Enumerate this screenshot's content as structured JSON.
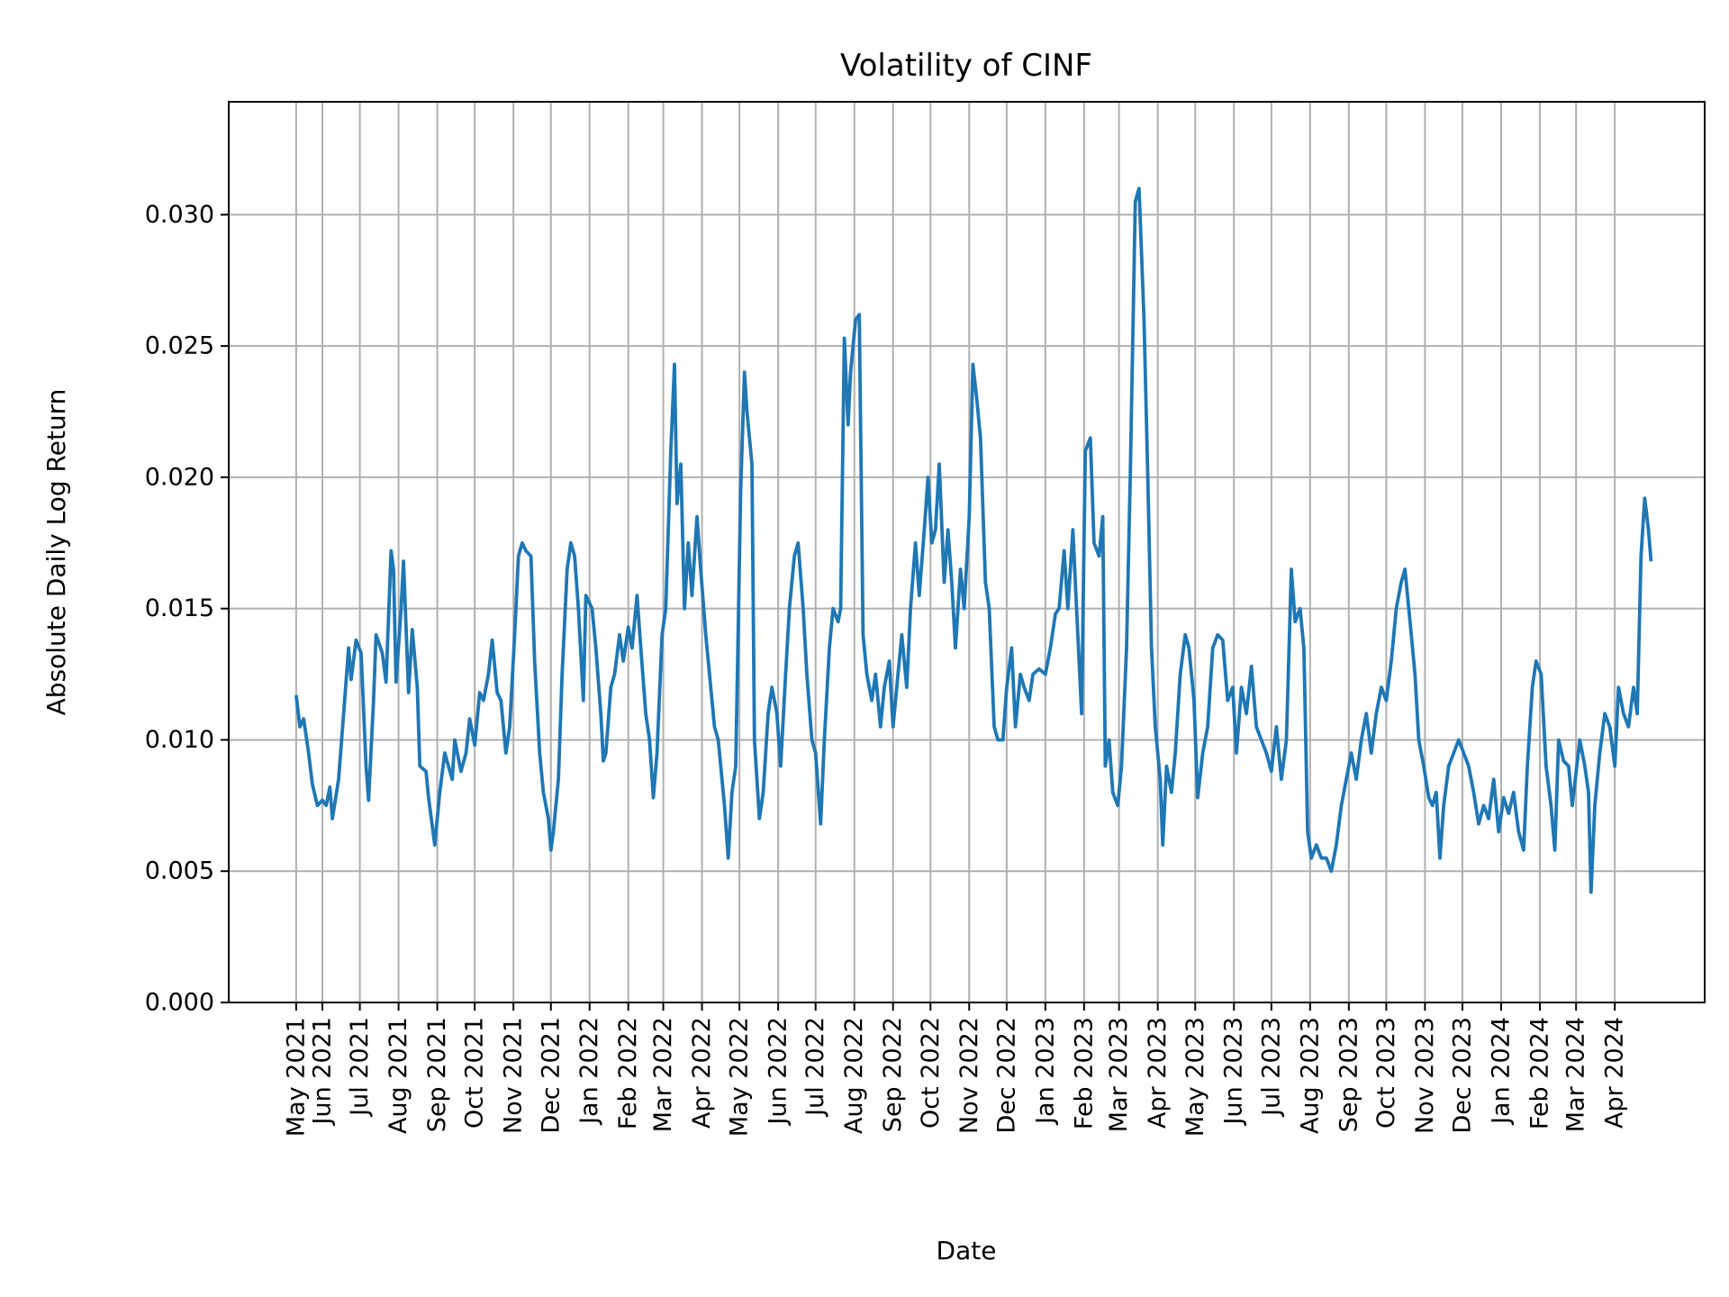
{
  "chart_data": {
    "type": "line",
    "title": "Volatility of CINF",
    "xlabel": "Date",
    "ylabel": "Absolute Daily Log Return",
    "xlim": [
      "2021-03-18",
      "2024-06-12"
    ],
    "ylim": [
      0,
      0.0343
    ],
    "grid": true,
    "line_color": "#1f77b4",
    "yticks": [
      "0.000",
      "0.005",
      "0.010",
      "0.015",
      "0.020",
      "0.025",
      "0.030"
    ],
    "xticks": [
      {
        "date": "2021-05-11",
        "label": "May 2021"
      },
      {
        "date": "2021-06-01",
        "label": "Jun 2021"
      },
      {
        "date": "2021-07-01",
        "label": "Jul 2021"
      },
      {
        "date": "2021-08-01",
        "label": "Aug 2021"
      },
      {
        "date": "2021-09-01",
        "label": "Sep 2021"
      },
      {
        "date": "2021-10-01",
        "label": "Oct 2021"
      },
      {
        "date": "2021-11-01",
        "label": "Nov 2021"
      },
      {
        "date": "2021-12-01",
        "label": "Dec 2021"
      },
      {
        "date": "2022-01-01",
        "label": "Jan 2022"
      },
      {
        "date": "2022-02-01",
        "label": "Feb 2022"
      },
      {
        "date": "2022-03-01",
        "label": "Mar 2022"
      },
      {
        "date": "2022-04-01",
        "label": "Apr 2022"
      },
      {
        "date": "2022-05-01",
        "label": "May 2022"
      },
      {
        "date": "2022-06-01",
        "label": "Jun 2022"
      },
      {
        "date": "2022-07-01",
        "label": "Jul 2022"
      },
      {
        "date": "2022-08-01",
        "label": "Aug 2022"
      },
      {
        "date": "2022-09-01",
        "label": "Sep 2022"
      },
      {
        "date": "2022-10-01",
        "label": "Oct 2022"
      },
      {
        "date": "2022-11-01",
        "label": "Nov 2022"
      },
      {
        "date": "2022-12-01",
        "label": "Dec 2022"
      },
      {
        "date": "2023-01-01",
        "label": "Jan 2023"
      },
      {
        "date": "2023-02-01",
        "label": "Feb 2023"
      },
      {
        "date": "2023-03-01",
        "label": "Mar 2023"
      },
      {
        "date": "2023-04-01",
        "label": "Apr 2023"
      },
      {
        "date": "2023-05-01",
        "label": "May 2023"
      },
      {
        "date": "2023-06-01",
        "label": "Jun 2023"
      },
      {
        "date": "2023-07-01",
        "label": "Jul 2023"
      },
      {
        "date": "2023-08-01",
        "label": "Aug 2023"
      },
      {
        "date": "2023-09-01",
        "label": "Sep 2023"
      },
      {
        "date": "2023-10-01",
        "label": "Oct 2023"
      },
      {
        "date": "2023-11-01",
        "label": "Nov 2023"
      },
      {
        "date": "2023-12-01",
        "label": "Dec 2023"
      },
      {
        "date": "2024-01-01",
        "label": "Jan 2024"
      },
      {
        "date": "2024-02-01",
        "label": "Feb 2024"
      },
      {
        "date": "2024-03-01",
        "label": "Mar 2024"
      },
      {
        "date": "2024-04-01",
        "label": "Apr 2024"
      }
    ],
    "points": [
      [
        "2021-05-11",
        0.0117
      ],
      [
        "2021-05-14",
        0.0105
      ],
      [
        "2021-05-17",
        0.0108
      ],
      [
        "2021-05-21",
        0.0095
      ],
      [
        "2021-05-24",
        0.0083
      ],
      [
        "2021-05-28",
        0.0075
      ],
      [
        "2021-06-01",
        0.0077
      ],
      [
        "2021-06-04",
        0.0075
      ],
      [
        "2021-06-07",
        0.0082
      ],
      [
        "2021-06-09",
        0.007
      ],
      [
        "2021-06-14",
        0.0085
      ],
      [
        "2021-06-18",
        0.011
      ],
      [
        "2021-06-22",
        0.0135
      ],
      [
        "2021-06-24",
        0.0123
      ],
      [
        "2021-06-28",
        0.0138
      ],
      [
        "2021-07-02",
        0.0133
      ],
      [
        "2021-07-06",
        0.009
      ],
      [
        "2021-07-08",
        0.0077
      ],
      [
        "2021-07-12",
        0.0115
      ],
      [
        "2021-07-14",
        0.014
      ],
      [
        "2021-07-19",
        0.0133
      ],
      [
        "2021-07-22",
        0.0122
      ],
      [
        "2021-07-26",
        0.0172
      ],
      [
        "2021-07-28",
        0.0165
      ],
      [
        "2021-07-30",
        0.0122
      ],
      [
        "2021-08-03",
        0.015
      ],
      [
        "2021-08-05",
        0.0168
      ],
      [
        "2021-08-09",
        0.0118
      ],
      [
        "2021-08-12",
        0.0142
      ],
      [
        "2021-08-16",
        0.012
      ],
      [
        "2021-08-18",
        0.009
      ],
      [
        "2021-08-23",
        0.0088
      ],
      [
        "2021-08-25",
        0.0078
      ],
      [
        "2021-08-30",
        0.006
      ],
      [
        "2021-09-03",
        0.008
      ],
      [
        "2021-09-07",
        0.0095
      ],
      [
        "2021-09-10",
        0.009
      ],
      [
        "2021-09-13",
        0.0085
      ],
      [
        "2021-09-15",
        0.01
      ],
      [
        "2021-09-20",
        0.0088
      ],
      [
        "2021-09-24",
        0.0095
      ],
      [
        "2021-09-27",
        0.0108
      ],
      [
        "2021-10-01",
        0.0098
      ],
      [
        "2021-10-05",
        0.0118
      ],
      [
        "2021-10-08",
        0.0115
      ],
      [
        "2021-10-12",
        0.0125
      ],
      [
        "2021-10-15",
        0.0138
      ],
      [
        "2021-10-19",
        0.0118
      ],
      [
        "2021-10-22",
        0.0115
      ],
      [
        "2021-10-26",
        0.0095
      ],
      [
        "2021-10-29",
        0.0105
      ],
      [
        "2021-11-02",
        0.014
      ],
      [
        "2021-11-05",
        0.017
      ],
      [
        "2021-11-08",
        0.0175
      ],
      [
        "2021-11-11",
        0.0172
      ],
      [
        "2021-11-15",
        0.017
      ],
      [
        "2021-11-18",
        0.013
      ],
      [
        "2021-11-22",
        0.0095
      ],
      [
        "2021-11-25",
        0.008
      ],
      [
        "2021-11-29",
        0.007
      ],
      [
        "2021-12-01",
        0.0058
      ],
      [
        "2021-12-03",
        0.0065
      ],
      [
        "2021-12-07",
        0.0085
      ],
      [
        "2021-12-10",
        0.0125
      ],
      [
        "2021-12-14",
        0.0165
      ],
      [
        "2021-12-17",
        0.0175
      ],
      [
        "2021-12-20",
        0.017
      ],
      [
        "2021-12-23",
        0.015
      ],
      [
        "2021-12-27",
        0.0115
      ],
      [
        "2021-12-29",
        0.0155
      ],
      [
        "2022-01-03",
        0.015
      ],
      [
        "2022-01-06",
        0.0135
      ],
      [
        "2022-01-10",
        0.011
      ],
      [
        "2022-01-12",
        0.0092
      ],
      [
        "2022-01-14",
        0.0095
      ],
      [
        "2022-01-18",
        0.012
      ],
      [
        "2022-01-21",
        0.0125
      ],
      [
        "2022-01-25",
        0.014
      ],
      [
        "2022-01-28",
        0.013
      ],
      [
        "2022-02-01",
        0.0143
      ],
      [
        "2022-02-04",
        0.0135
      ],
      [
        "2022-02-08",
        0.0155
      ],
      [
        "2022-02-11",
        0.0135
      ],
      [
        "2022-02-15",
        0.011
      ],
      [
        "2022-02-18",
        0.01
      ],
      [
        "2022-02-21",
        0.0078
      ],
      [
        "2022-02-24",
        0.0095
      ],
      [
        "2022-02-28",
        0.014
      ],
      [
        "2022-03-03",
        0.015
      ],
      [
        "2022-03-07",
        0.021
      ],
      [
        "2022-03-10",
        0.0243
      ],
      [
        "2022-03-12",
        0.019
      ],
      [
        "2022-03-15",
        0.0205
      ],
      [
        "2022-03-18",
        0.015
      ],
      [
        "2022-03-21",
        0.0175
      ],
      [
        "2022-03-24",
        0.0155
      ],
      [
        "2022-03-28",
        0.0185
      ],
      [
        "2022-03-31",
        0.0165
      ],
      [
        "2022-04-04",
        0.014
      ],
      [
        "2022-04-07",
        0.0125
      ],
      [
        "2022-04-11",
        0.0105
      ],
      [
        "2022-04-14",
        0.01
      ],
      [
        "2022-04-19",
        0.0075
      ],
      [
        "2022-04-22",
        0.0055
      ],
      [
        "2022-04-25",
        0.008
      ],
      [
        "2022-04-28",
        0.009
      ],
      [
        "2022-05-02",
        0.0195
      ],
      [
        "2022-05-05",
        0.024
      ],
      [
        "2022-05-07",
        0.0225
      ],
      [
        "2022-05-11",
        0.0205
      ],
      [
        "2022-05-13",
        0.01
      ],
      [
        "2022-05-17",
        0.007
      ],
      [
        "2022-05-20",
        0.008
      ],
      [
        "2022-05-24",
        0.011
      ],
      [
        "2022-05-27",
        0.012
      ],
      [
        "2022-05-31",
        0.011
      ],
      [
        "2022-06-03",
        0.009
      ],
      [
        "2022-06-07",
        0.0125
      ],
      [
        "2022-06-10",
        0.015
      ],
      [
        "2022-06-14",
        0.017
      ],
      [
        "2022-06-17",
        0.0175
      ],
      [
        "2022-06-21",
        0.015
      ],
      [
        "2022-06-24",
        0.0125
      ],
      [
        "2022-06-28",
        0.01
      ],
      [
        "2022-07-01",
        0.0095
      ],
      [
        "2022-07-05",
        0.0068
      ],
      [
        "2022-07-08",
        0.01
      ],
      [
        "2022-07-12",
        0.0135
      ],
      [
        "2022-07-15",
        0.015
      ],
      [
        "2022-07-19",
        0.0145
      ],
      [
        "2022-07-21",
        0.015
      ],
      [
        "2022-07-24",
        0.0253
      ],
      [
        "2022-07-27",
        0.022
      ],
      [
        "2022-07-29",
        0.024
      ],
      [
        "2022-08-02",
        0.026
      ],
      [
        "2022-08-05",
        0.0262
      ],
      [
        "2022-08-08",
        0.014
      ],
      [
        "2022-08-11",
        0.0125
      ],
      [
        "2022-08-15",
        0.0115
      ],
      [
        "2022-08-18",
        0.0125
      ],
      [
        "2022-08-22",
        0.0105
      ],
      [
        "2022-08-25",
        0.012
      ],
      [
        "2022-08-29",
        0.013
      ],
      [
        "2022-09-01",
        0.0105
      ],
      [
        "2022-09-05",
        0.0125
      ],
      [
        "2022-09-08",
        0.014
      ],
      [
        "2022-09-12",
        0.012
      ],
      [
        "2022-09-15",
        0.015
      ],
      [
        "2022-09-19",
        0.0175
      ],
      [
        "2022-09-22",
        0.0155
      ],
      [
        "2022-09-26",
        0.018
      ],
      [
        "2022-09-29",
        0.02
      ],
      [
        "2022-10-02",
        0.0175
      ],
      [
        "2022-10-05",
        0.018
      ],
      [
        "2022-10-08",
        0.0205
      ],
      [
        "2022-10-12",
        0.016
      ],
      [
        "2022-10-15",
        0.018
      ],
      [
        "2022-10-18",
        0.016
      ],
      [
        "2022-10-21",
        0.0135
      ],
      [
        "2022-10-25",
        0.0165
      ],
      [
        "2022-10-28",
        0.015
      ],
      [
        "2022-11-01",
        0.0185
      ],
      [
        "2022-11-04",
        0.0243
      ],
      [
        "2022-11-07",
        0.023
      ],
      [
        "2022-11-10",
        0.0215
      ],
      [
        "2022-11-14",
        0.016
      ],
      [
        "2022-11-17",
        0.015
      ],
      [
        "2022-11-21",
        0.0105
      ],
      [
        "2022-11-24",
        0.01
      ],
      [
        "2022-11-28",
        0.01
      ],
      [
        "2022-12-01",
        0.012
      ],
      [
        "2022-12-05",
        0.0135
      ],
      [
        "2022-12-08",
        0.0105
      ],
      [
        "2022-12-12",
        0.0125
      ],
      [
        "2022-12-15",
        0.012
      ],
      [
        "2022-12-19",
        0.0115
      ],
      [
        "2022-12-22",
        0.0125
      ],
      [
        "2022-12-27",
        0.0127
      ],
      [
        "2023-01-01",
        0.0125
      ],
      [
        "2023-01-05",
        0.0135
      ],
      [
        "2023-01-09",
        0.0148
      ],
      [
        "2023-01-12",
        0.015
      ],
      [
        "2023-01-16",
        0.0172
      ],
      [
        "2023-01-19",
        0.015
      ],
      [
        "2023-01-23",
        0.018
      ],
      [
        "2023-01-26",
        0.015
      ],
      [
        "2023-01-30",
        0.011
      ],
      [
        "2023-02-02",
        0.021
      ],
      [
        "2023-02-06",
        0.0215
      ],
      [
        "2023-02-09",
        0.0175
      ],
      [
        "2023-02-13",
        0.017
      ],
      [
        "2023-02-16",
        0.0185
      ],
      [
        "2023-02-18",
        0.009
      ],
      [
        "2023-02-21",
        0.01
      ],
      [
        "2023-02-24",
        0.008
      ],
      [
        "2023-02-28",
        0.0075
      ],
      [
        "2023-03-03",
        0.009
      ],
      [
        "2023-03-07",
        0.0135
      ],
      [
        "2023-03-10",
        0.02
      ],
      [
        "2023-03-14",
        0.0305
      ],
      [
        "2023-03-17",
        0.031
      ],
      [
        "2023-03-21",
        0.026
      ],
      [
        "2023-03-24",
        0.02
      ],
      [
        "2023-03-27",
        0.0135
      ],
      [
        "2023-03-30",
        0.0105
      ],
      [
        "2023-04-03",
        0.0085
      ],
      [
        "2023-04-05",
        0.006
      ],
      [
        "2023-04-08",
        0.009
      ],
      [
        "2023-04-12",
        0.008
      ],
      [
        "2023-04-15",
        0.0095
      ],
      [
        "2023-04-19",
        0.0125
      ],
      [
        "2023-04-23",
        0.014
      ],
      [
        "2023-04-26",
        0.0135
      ],
      [
        "2023-04-30",
        0.0115
      ],
      [
        "2023-05-03",
        0.0078
      ],
      [
        "2023-05-07",
        0.0095
      ],
      [
        "2023-05-11",
        0.0105
      ],
      [
        "2023-05-15",
        0.0135
      ],
      [
        "2023-05-19",
        0.014
      ],
      [
        "2023-05-23",
        0.0138
      ],
      [
        "2023-05-27",
        0.0115
      ],
      [
        "2023-05-31",
        0.012
      ],
      [
        "2023-06-03",
        0.0095
      ],
      [
        "2023-06-07",
        0.012
      ],
      [
        "2023-06-11",
        0.011
      ],
      [
        "2023-06-15",
        0.0128
      ],
      [
        "2023-06-19",
        0.0105
      ],
      [
        "2023-06-23",
        0.01
      ],
      [
        "2023-06-27",
        0.0095
      ],
      [
        "2023-07-01",
        0.0088
      ],
      [
        "2023-07-05",
        0.0105
      ],
      [
        "2023-07-09",
        0.0085
      ],
      [
        "2023-07-13",
        0.01
      ],
      [
        "2023-07-17",
        0.0165
      ],
      [
        "2023-07-20",
        0.0145
      ],
      [
        "2023-07-24",
        0.015
      ],
      [
        "2023-07-27",
        0.0135
      ],
      [
        "2023-07-30",
        0.0065
      ],
      [
        "2023-08-02",
        0.0055
      ],
      [
        "2023-08-06",
        0.006
      ],
      [
        "2023-08-10",
        0.0055
      ],
      [
        "2023-08-14",
        0.0055
      ],
      [
        "2023-08-18",
        0.005
      ],
      [
        "2023-08-22",
        0.006
      ],
      [
        "2023-08-26",
        0.0075
      ],
      [
        "2023-08-30",
        0.0085
      ],
      [
        "2023-09-03",
        0.0095
      ],
      [
        "2023-09-07",
        0.0085
      ],
      [
        "2023-09-11",
        0.01
      ],
      [
        "2023-09-15",
        0.011
      ],
      [
        "2023-09-19",
        0.0095
      ],
      [
        "2023-09-23",
        0.011
      ],
      [
        "2023-09-27",
        0.012
      ],
      [
        "2023-10-01",
        0.0115
      ],
      [
        "2023-10-05",
        0.013
      ],
      [
        "2023-10-09",
        0.015
      ],
      [
        "2023-10-13",
        0.016
      ],
      [
        "2023-10-16",
        0.0165
      ],
      [
        "2023-10-20",
        0.0145
      ],
      [
        "2023-10-24",
        0.0125
      ],
      [
        "2023-10-27",
        0.01
      ],
      [
        "2023-10-31",
        0.009
      ],
      [
        "2023-11-04",
        0.0078
      ],
      [
        "2023-11-07",
        0.0075
      ],
      [
        "2023-11-10",
        0.008
      ],
      [
        "2023-11-13",
        0.0055
      ],
      [
        "2023-11-16",
        0.0075
      ],
      [
        "2023-11-20",
        0.009
      ],
      [
        "2023-11-24",
        0.0095
      ],
      [
        "2023-11-28",
        0.01
      ],
      [
        "2023-12-02",
        0.0095
      ],
      [
        "2023-12-06",
        0.009
      ],
      [
        "2023-12-10",
        0.008
      ],
      [
        "2023-12-14",
        0.0068
      ],
      [
        "2023-12-18",
        0.0075
      ],
      [
        "2023-12-22",
        0.007
      ],
      [
        "2023-12-26",
        0.0085
      ],
      [
        "2023-12-30",
        0.0065
      ],
      [
        "2024-01-03",
        0.0078
      ],
      [
        "2024-01-07",
        0.0072
      ],
      [
        "2024-01-11",
        0.008
      ],
      [
        "2024-01-15",
        0.0065
      ],
      [
        "2024-01-19",
        0.0058
      ],
      [
        "2024-01-22",
        0.009
      ],
      [
        "2024-01-26",
        0.012
      ],
      [
        "2024-01-29",
        0.013
      ],
      [
        "2024-02-02",
        0.0125
      ],
      [
        "2024-02-06",
        0.009
      ],
      [
        "2024-02-10",
        0.0075
      ],
      [
        "2024-02-13",
        0.0058
      ],
      [
        "2024-02-16",
        0.01
      ],
      [
        "2024-02-20",
        0.0092
      ],
      [
        "2024-02-24",
        0.009
      ],
      [
        "2024-02-27",
        0.0075
      ],
      [
        "2024-03-04",
        0.01
      ],
      [
        "2024-03-08",
        0.009
      ],
      [
        "2024-03-11",
        0.008
      ],
      [
        "2024-03-13",
        0.0042
      ],
      [
        "2024-03-16",
        0.0075
      ],
      [
        "2024-03-20",
        0.0095
      ],
      [
        "2024-03-24",
        0.011
      ],
      [
        "2024-03-28",
        0.0105
      ],
      [
        "2024-04-01",
        0.009
      ],
      [
        "2024-04-04",
        0.012
      ],
      [
        "2024-04-08",
        0.011
      ],
      [
        "2024-04-12",
        0.0105
      ],
      [
        "2024-04-16",
        0.012
      ],
      [
        "2024-04-19",
        0.011
      ],
      [
        "2024-04-22",
        0.017
      ],
      [
        "2024-04-25",
        0.0192
      ],
      [
        "2024-04-28",
        0.018
      ],
      [
        "2024-04-30",
        0.0168
      ]
    ]
  }
}
